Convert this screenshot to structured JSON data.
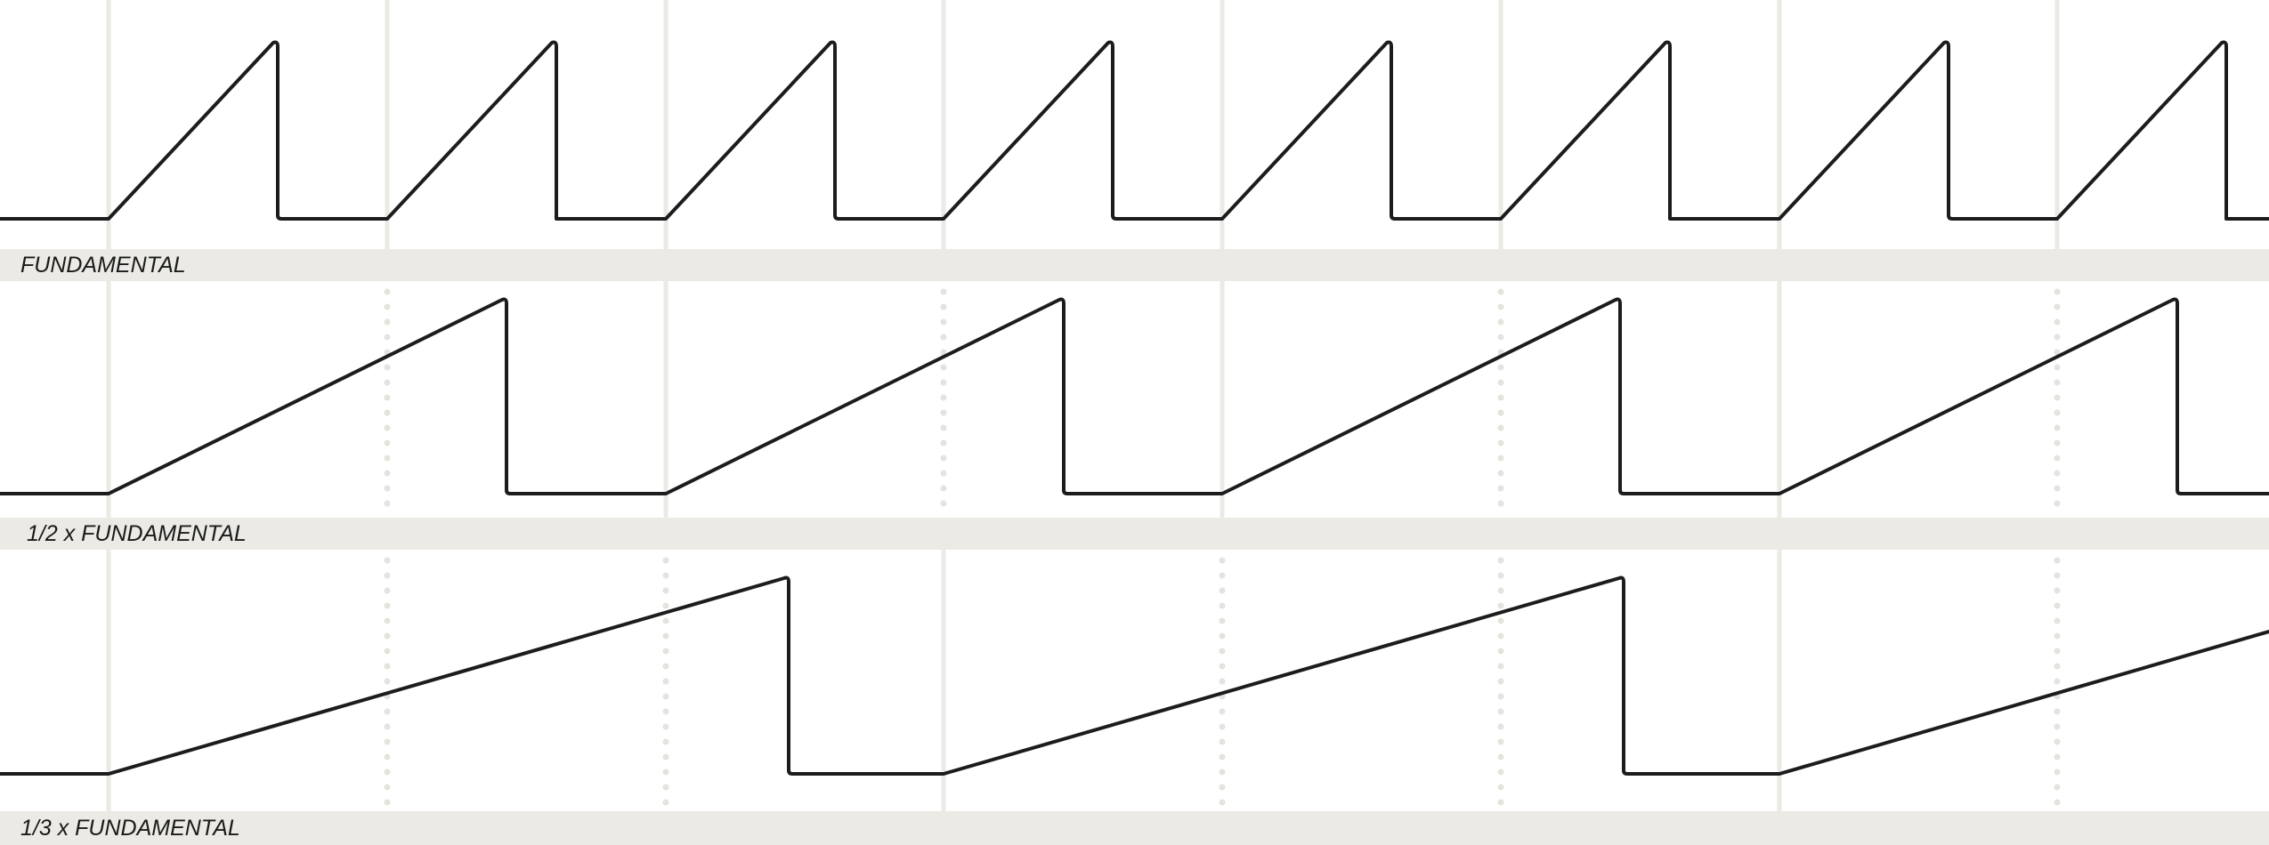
{
  "panels": [
    {
      "label": "FUNDAMENTAL",
      "ratio": "1",
      "color": "#1c1c1c"
    },
    {
      "label": "1/2 x FUNDAMENTAL",
      "ratio": "1/2",
      "color": "#1c1c1c"
    },
    {
      "label": "1/3 x FUNDAMENTAL",
      "ratio": "1/3",
      "color": "#1c1c1c"
    }
  ],
  "colors": {
    "background": "#ffffff",
    "band": "#ebeae5",
    "grid": "#ebeae5",
    "wave": "#1c1c1c"
  }
}
